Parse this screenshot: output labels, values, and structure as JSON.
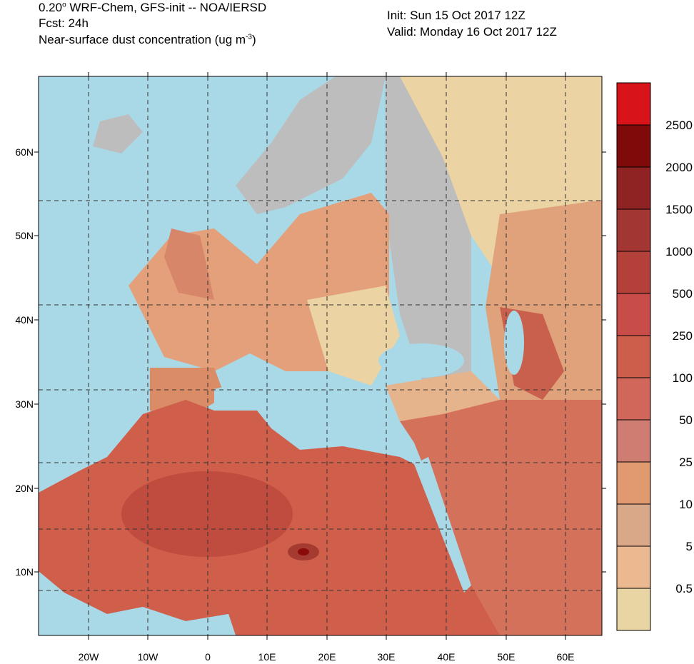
{
  "header": {
    "line1_a": "0.20",
    "line1_sup": "o",
    "line1_b": " WRF-Chem, GFS-init -- NOA/IERSD",
    "line2": "Fcst: 24h",
    "line3_a": "Near-surface dust concentration (ug m",
    "line3_sup": "-3",
    "line3_b": ")",
    "init": "Init: Sun 15 Oct 2017  12Z",
    "valid": "Valid: Monday 16 Oct 2017  12Z"
  },
  "map": {
    "lon_labels": [
      "20W",
      "10W",
      "0",
      "10E",
      "20E",
      "30E",
      "40E",
      "50E",
      "60E"
    ],
    "lat_labels": [
      "60N",
      "50N",
      "40N",
      "30N",
      "20N",
      "10N"
    ]
  },
  "colorbar": {
    "labels": [
      "2500",
      "2000",
      "1500",
      "1000",
      "500",
      "250",
      "100",
      "50",
      "25",
      "10",
      "5",
      "0.5"
    ]
  }
}
